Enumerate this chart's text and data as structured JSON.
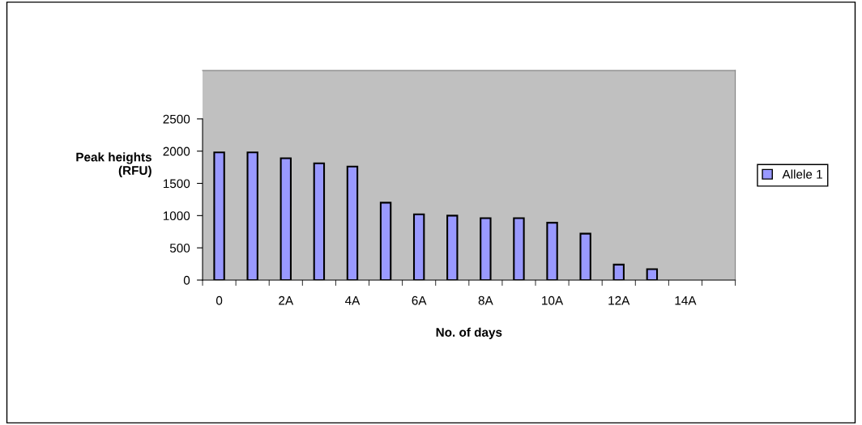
{
  "chart_data": {
    "type": "bar",
    "categories": [
      "0",
      null,
      "2A",
      null,
      "4A",
      null,
      "6A",
      null,
      "8A",
      null,
      "10A",
      null,
      "12A",
      null,
      "14A",
      null
    ],
    "series": [
      {
        "name": "Allele 1",
        "color": "#9999ff",
        "values": [
          1980,
          1980,
          1890,
          1810,
          1760,
          1200,
          1020,
          1000,
          960,
          960,
          890,
          720,
          240,
          170,
          null,
          null
        ]
      }
    ],
    "xlabel": "No. of days",
    "ylabel": "Peak heights\n(RFU)",
    "ylim": [
      0,
      3250
    ],
    "yticks": [
      0,
      500,
      1000,
      1500,
      2000,
      2500
    ],
    "grid": false,
    "legend": "right"
  }
}
